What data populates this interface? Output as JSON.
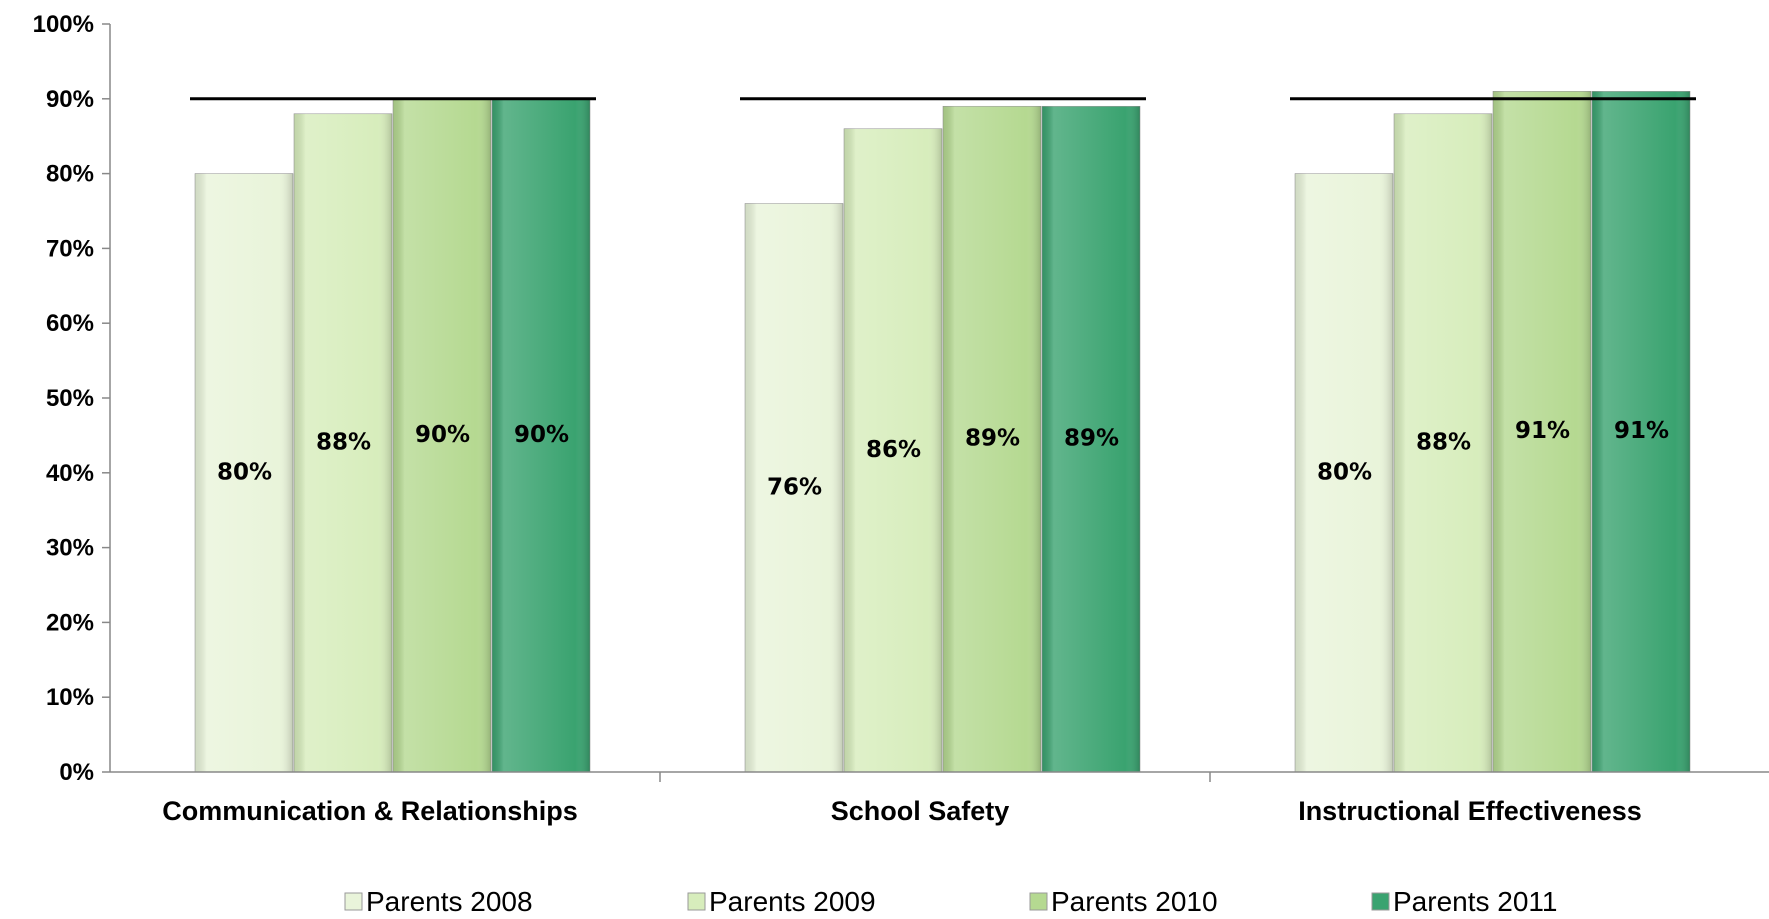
{
  "chart_data": {
    "type": "bar",
    "categories": [
      "Communication & Relationships",
      "School Safety",
      "Instructional Effectiveness"
    ],
    "series": [
      {
        "name": "Parents 2008",
        "values": [
          80,
          76,
          80
        ],
        "labels": [
          "80%",
          "76%",
          "80%"
        ],
        "color": "#e9f4da"
      },
      {
        "name": "Parents 2009",
        "values": [
          88,
          86,
          88
        ],
        "labels": [
          "88%",
          "86%",
          "88%"
        ],
        "color": "#d7edbc"
      },
      {
        "name": "Parents 2010",
        "values": [
          90,
          89,
          91
        ],
        "labels": [
          "90%",
          "89%",
          "91%"
        ],
        "color": "#b5d991"
      },
      {
        "name": "Parents 2011",
        "values": [
          90,
          89,
          91
        ],
        "labels": [
          "90%",
          "89%",
          "91%"
        ],
        "color": "#3aa370"
      }
    ],
    "target_line": 90,
    "ylim": [
      0,
      100
    ],
    "yticks": [
      "0%",
      "10%",
      "20%",
      "30%",
      "40%",
      "50%",
      "60%",
      "70%",
      "80%",
      "90%",
      "100%"
    ],
    "xlabel": "",
    "ylabel": "",
    "title": "",
    "grid": false,
    "legend_position": "bottom"
  }
}
